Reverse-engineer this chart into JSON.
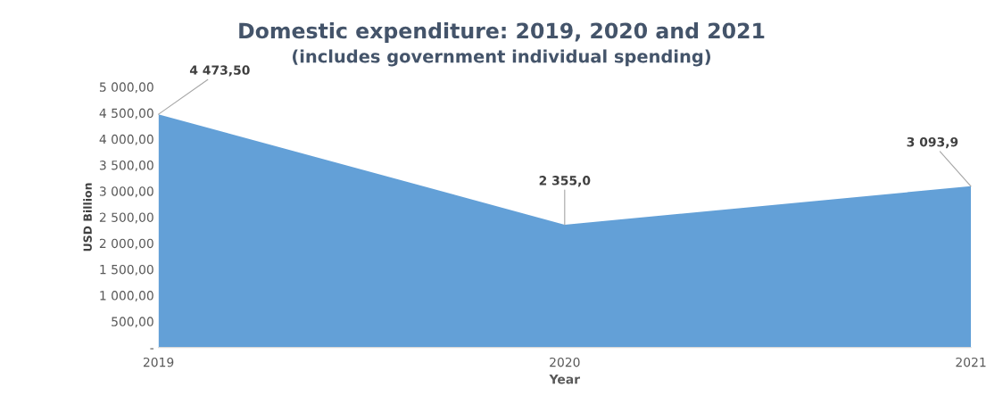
{
  "chart_data": {
    "type": "area",
    "title": "Domestic expenditure: 2019, 2020 and 2021",
    "subtitle": "(includes government individual spending)",
    "xlabel": "Year",
    "ylabel": "USD Billion",
    "categories": [
      "2019",
      "2020",
      "2021"
    ],
    "series": [
      {
        "color": "#5b9bd5",
        "values": [
          4473.5,
          2355.0,
          3093.9
        ],
        "value_labels": [
          "4 473,50",
          "2 355,0",
          "3 093,9"
        ]
      }
    ],
    "ylim": [
      0,
      5000
    ],
    "yticks": [
      {
        "value": 0,
        "label": "-"
      },
      {
        "value": 500,
        "label": "500,00"
      },
      {
        "value": 1000,
        "label": "1 000,00"
      },
      {
        "value": 1500,
        "label": "1 500,00"
      },
      {
        "value": 2000,
        "label": "2 000,00"
      },
      {
        "value": 2500,
        "label": "2 500,00"
      },
      {
        "value": 3000,
        "label": "3 000,00"
      },
      {
        "value": 3500,
        "label": "3 500,00"
      },
      {
        "value": 4000,
        "label": "4 000,00"
      },
      {
        "value": 4500,
        "label": "4 500,00"
      },
      {
        "value": 5000,
        "label": "5 000,00"
      }
    ],
    "grid": false,
    "legend": false
  }
}
